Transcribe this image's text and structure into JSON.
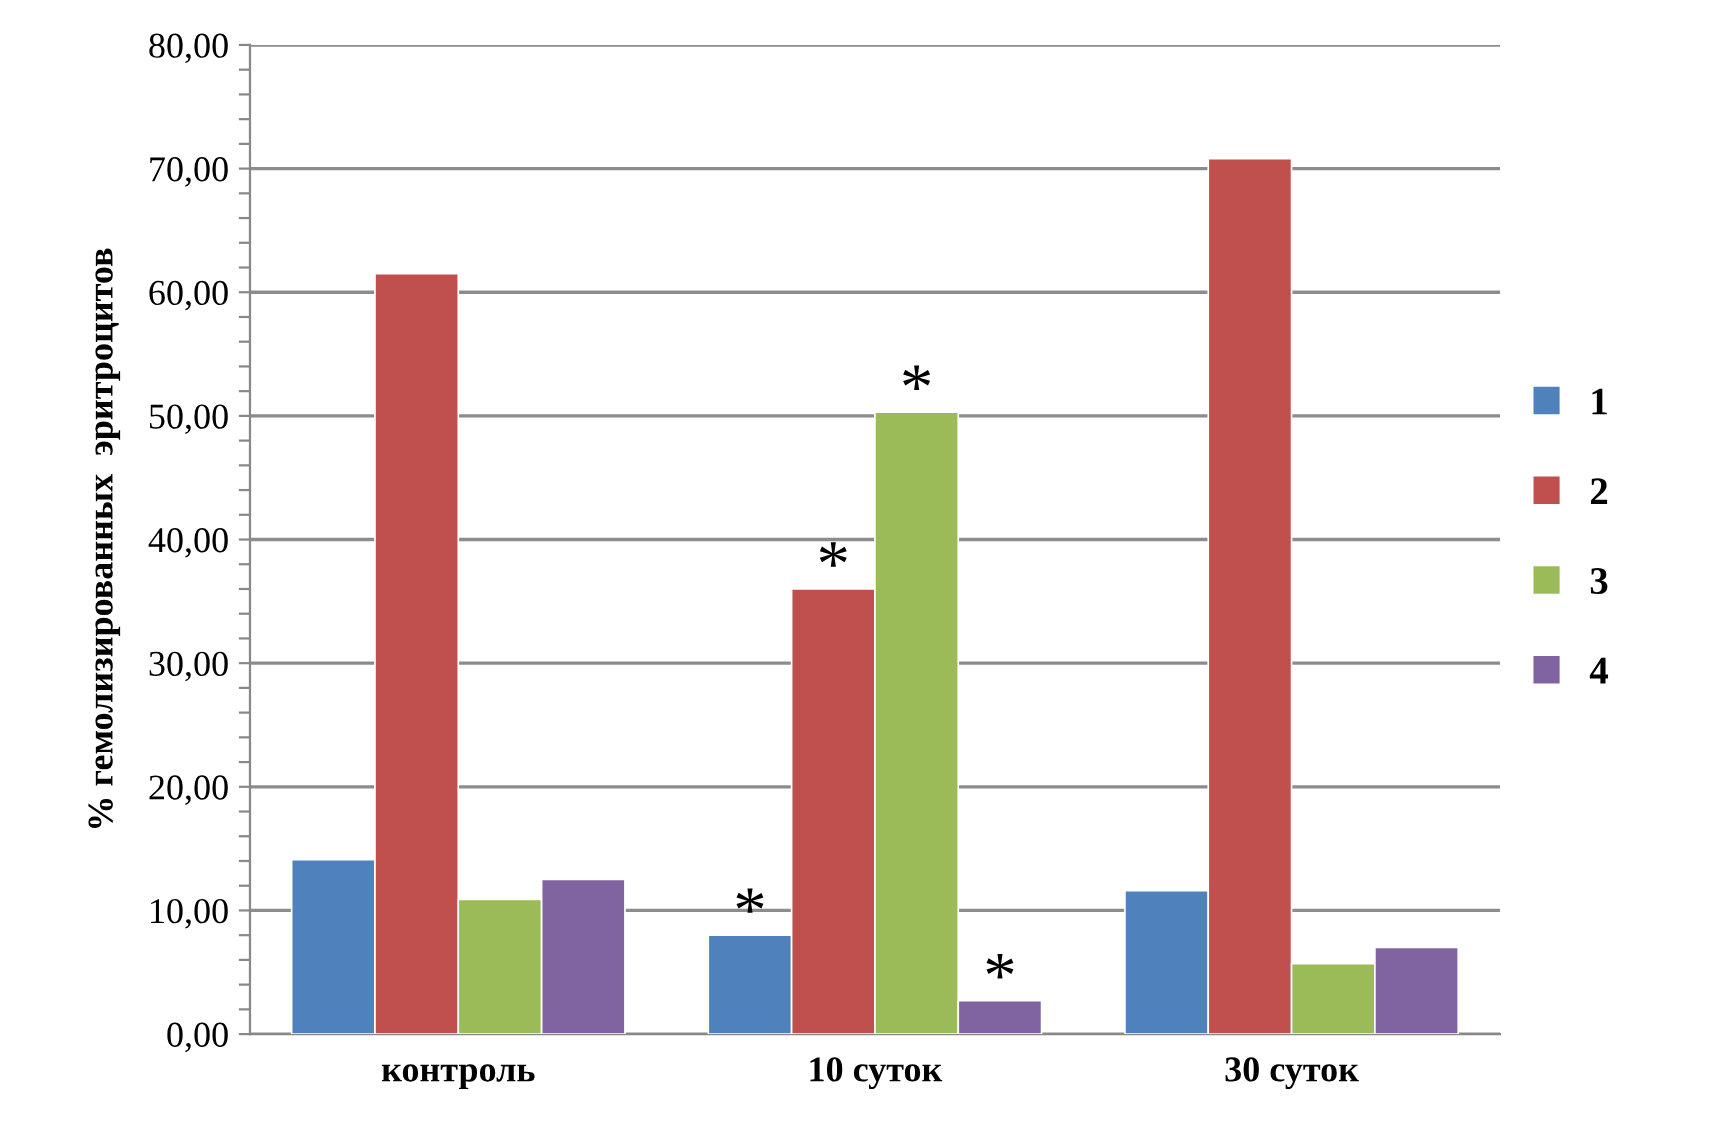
{
  "chart_data": {
    "type": "bar",
    "ylabel": "% гемолизированных  эритроцитов",
    "categories": [
      "контроль",
      "10 суток",
      "30 суток"
    ],
    "series": [
      {
        "name": "1",
        "color": "#4f81bd",
        "values": [
          14.1,
          8.0,
          11.6
        ]
      },
      {
        "name": "2",
        "color": "#c0504d",
        "values": [
          61.5,
          36.0,
          70.8
        ]
      },
      {
        "name": "3",
        "color": "#9bbb59",
        "values": [
          10.9,
          50.3,
          5.7
        ]
      },
      {
        "name": "4",
        "color": "#8064a2",
        "values": [
          12.5,
          2.7,
          7.0
        ]
      }
    ],
    "ylim": [
      0,
      80
    ],
    "yticks": [
      {
        "value": 0,
        "label": "0,00"
      },
      {
        "value": 2,
        "label": null
      },
      {
        "value": 4,
        "label": null
      },
      {
        "value": 6,
        "label": null
      },
      {
        "value": 8,
        "label": null
      },
      {
        "value": 10,
        "label": "10,00"
      },
      {
        "value": 12,
        "label": null
      },
      {
        "value": 14,
        "label": null
      },
      {
        "value": 16,
        "label": null
      },
      {
        "value": 18,
        "label": null
      },
      {
        "value": 20,
        "label": "20,00"
      },
      {
        "value": 22,
        "label": null
      },
      {
        "value": 24,
        "label": null
      },
      {
        "value": 26,
        "label": null
      },
      {
        "value": 28,
        "label": null
      },
      {
        "value": 30,
        "label": "30,00"
      },
      {
        "value": 32,
        "label": null
      },
      {
        "value": 34,
        "label": null
      },
      {
        "value": 36,
        "label": null
      },
      {
        "value": 38,
        "label": null
      },
      {
        "value": 40,
        "label": "40,00"
      },
      {
        "value": 42,
        "label": null
      },
      {
        "value": 44,
        "label": null
      },
      {
        "value": 46,
        "label": null
      },
      {
        "value": 48,
        "label": null
      },
      {
        "value": 50,
        "label": "50,00"
      },
      {
        "value": 52,
        "label": null
      },
      {
        "value": 54,
        "label": null
      },
      {
        "value": 56,
        "label": null
      },
      {
        "value": 58,
        "label": null
      },
      {
        "value": 60,
        "label": "60,00"
      },
      {
        "value": 62,
        "label": null
      },
      {
        "value": 64,
        "label": null
      },
      {
        "value": 66,
        "label": null
      },
      {
        "value": 68,
        "label": null
      },
      {
        "value": 70,
        "label": "70,00"
      },
      {
        "value": 72,
        "label": null
      },
      {
        "value": 74,
        "label": null
      },
      {
        "value": 76,
        "label": null
      },
      {
        "value": 78,
        "label": null
      },
      {
        "value": 80,
        "label": "80,00"
      }
    ],
    "grid": "y",
    "legend": "right",
    "annotations": [
      {
        "text": "*",
        "x": "10 суток",
        "y": 8.0
      },
      {
        "text": "*",
        "x": "10 суток",
        "y": 36.0
      },
      {
        "text": "*",
        "x": "10 суток",
        "y": 50.3
      },
      {
        "text": "*",
        "x": "10 суток",
        "y": 2.7
      }
    ]
  }
}
